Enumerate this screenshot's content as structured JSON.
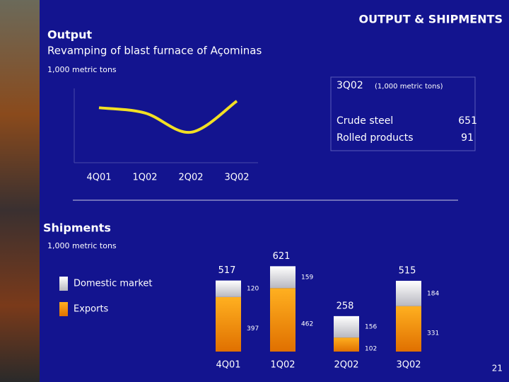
{
  "slide": {
    "title": "OUTPUT & SHIPMENTS",
    "page_number": "21"
  },
  "output": {
    "heading": "Output",
    "subtitle": "Revamping of blast furnace of Açominas",
    "unit": "1,000 metric tons",
    "box": {
      "title": "3Q02",
      "unit": "(1,000 metric tons)",
      "rows": [
        [
          "Crude steel",
          651
        ],
        [
          "Rolled products",
          91
        ]
      ]
    }
  },
  "shipments": {
    "heading": "Shipments",
    "unit": "1,000 metric tons"
  },
  "chart_data": [
    {
      "type": "line",
      "categories": [
        "4Q01",
        "1Q02",
        "2Q02",
        "3Q02"
      ],
      "values": [
        74,
        67,
        41,
        83
      ],
      "color": "#f2e024",
      "ylim": [
        0,
        100
      ]
    },
    {
      "type": "stacked_bar",
      "categories": [
        "4Q01",
        "1Q02",
        "2Q02",
        "3Q02"
      ],
      "series": [
        {
          "name": "Exports",
          "color": "#f08a10",
          "values": [
            397,
            462,
            102,
            331
          ]
        },
        {
          "name": "Domestic market",
          "color": "#e8e8e8",
          "values": [
            120,
            159,
            156,
            184
          ]
        }
      ],
      "totals": [
        517,
        621,
        258,
        515
      ],
      "ylim": [
        0,
        700
      ]
    }
  ]
}
